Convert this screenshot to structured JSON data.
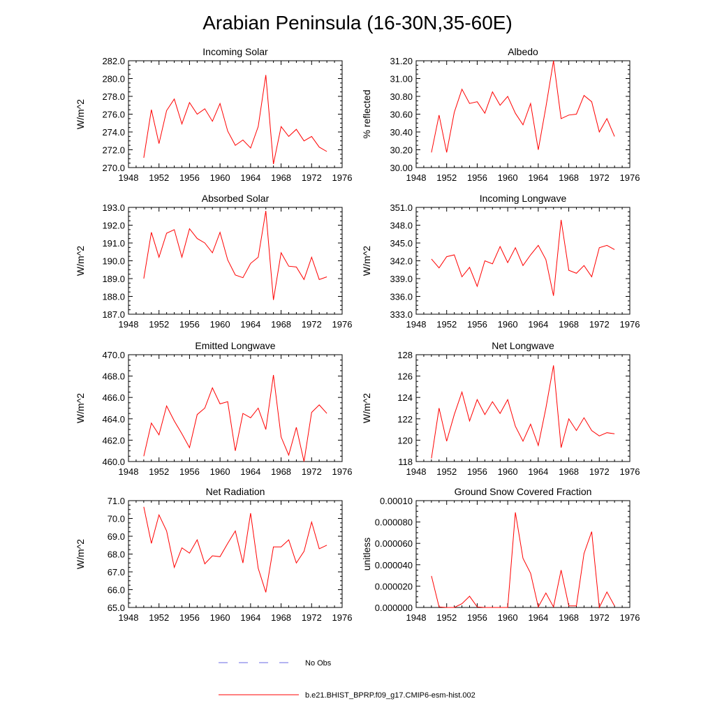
{
  "title": "Arabian Peninsula (16-30N,35-60E)",
  "line_color": "#ff0000",
  "obs_color": "#6a6ae6",
  "legend": [
    {
      "label": "No Obs",
      "style": "dashed"
    },
    {
      "label": "b.e21.BHIST_BPRP.f09_g17.CMIP6-esm-hist.002",
      "style": "solid"
    }
  ],
  "chart_data": [
    {
      "type": "line",
      "title": "Incoming Solar",
      "xlabel": "",
      "ylabel": "W/m^2",
      "xlim": [
        1948,
        1976
      ],
      "ylim": [
        270,
        282
      ],
      "xticks": [
        "1948",
        "1952",
        "1956",
        "1960",
        "1964",
        "1968",
        "1972",
        "1976"
      ],
      "yticks": [
        "270.0",
        "272.0",
        "274.0",
        "276.0",
        "278.0",
        "280.0",
        "282.0"
      ],
      "x": [
        1950,
        1951,
        1952,
        1953,
        1954,
        1955,
        1956,
        1957,
        1958,
        1959,
        1960,
        1961,
        1962,
        1963,
        1964,
        1965,
        1966,
        1967,
        1968,
        1969,
        1970,
        1971,
        1972,
        1973,
        1974
      ],
      "series": [
        {
          "values": [
            271.1,
            276.5,
            272.7,
            276.4,
            277.7,
            274.9,
            277.3,
            276.0,
            276.6,
            275.2,
            277.2,
            274.1,
            272.5,
            273.1,
            272.2,
            274.6,
            280.4,
            270.4,
            274.6,
            273.5,
            274.3,
            273.0,
            273.5,
            272.3,
            271.8
          ]
        }
      ]
    },
    {
      "type": "line",
      "title": "Albedo",
      "xlabel": "",
      "ylabel": "% reflected",
      "xlim": [
        1948,
        1976
      ],
      "ylim": [
        30.0,
        31.2
      ],
      "xticks": [
        "1948",
        "1952",
        "1956",
        "1960",
        "1964",
        "1968",
        "1972",
        "1976"
      ],
      "yticks": [
        "30.00",
        "30.20",
        "30.40",
        "30.60",
        "30.80",
        "31.00",
        "31.20"
      ],
      "x": [
        1950,
        1951,
        1952,
        1953,
        1954,
        1955,
        1956,
        1957,
        1958,
        1959,
        1960,
        1961,
        1962,
        1963,
        1964,
        1965,
        1966,
        1967,
        1968,
        1969,
        1970,
        1971,
        1972,
        1973,
        1974
      ],
      "series": [
        {
          "values": [
            30.17,
            30.59,
            30.17,
            30.62,
            30.88,
            30.72,
            30.74,
            30.61,
            30.85,
            30.7,
            30.8,
            30.61,
            30.48,
            30.72,
            30.2,
            30.68,
            31.2,
            30.55,
            30.59,
            30.6,
            30.81,
            30.74,
            30.4,
            30.55,
            30.35
          ]
        }
      ]
    },
    {
      "type": "line",
      "title": "Absorbed Solar",
      "xlabel": "",
      "ylabel": "W/m^2",
      "xlim": [
        1948,
        1976
      ],
      "ylim": [
        187,
        193
      ],
      "xticks": [
        "1948",
        "1952",
        "1956",
        "1960",
        "1964",
        "1968",
        "1972",
        "1976"
      ],
      "yticks": [
        "187.0",
        "188.0",
        "189.0",
        "190.0",
        "191.0",
        "192.0",
        "193.0"
      ],
      "x": [
        1950,
        1951,
        1952,
        1953,
        1954,
        1955,
        1956,
        1957,
        1958,
        1959,
        1960,
        1961,
        1962,
        1963,
        1964,
        1965,
        1966,
        1967,
        1968,
        1969,
        1970,
        1971,
        1972,
        1973,
        1974
      ],
      "series": [
        {
          "values": [
            189.0,
            191.6,
            190.2,
            191.55,
            191.75,
            190.2,
            191.8,
            191.25,
            191.0,
            190.45,
            191.6,
            190.05,
            189.2,
            189.05,
            189.85,
            190.2,
            192.8,
            187.8,
            190.45,
            189.7,
            189.65,
            188.95,
            190.2,
            188.95,
            189.1
          ]
        }
      ]
    },
    {
      "type": "line",
      "title": "Incoming Longwave",
      "xlabel": "",
      "ylabel": "W/m^2",
      "xlim": [
        1948,
        1976
      ],
      "ylim": [
        333,
        351
      ],
      "xticks": [
        "1948",
        "1952",
        "1956",
        "1960",
        "1964",
        "1968",
        "1972",
        "1976"
      ],
      "yticks": [
        "333.0",
        "336.0",
        "339.0",
        "342.0",
        "345.0",
        "348.0",
        "351.0"
      ],
      "x": [
        1950,
        1951,
        1952,
        1953,
        1954,
        1955,
        1956,
        1957,
        1958,
        1959,
        1960,
        1961,
        1962,
        1963,
        1964,
        1965,
        1966,
        1967,
        1968,
        1969,
        1970,
        1971,
        1972,
        1973,
        1974
      ],
      "series": [
        {
          "values": [
            342.3,
            340.8,
            342.7,
            343.0,
            339.3,
            340.9,
            337.7,
            342.0,
            341.5,
            344.4,
            341.7,
            344.2,
            341.2,
            343.0,
            344.6,
            342.2,
            336.1,
            348.9,
            340.4,
            339.9,
            341.2,
            339.3,
            344.2,
            344.6,
            343.9
          ]
        }
      ]
    },
    {
      "type": "line",
      "title": "Emitted Longwave",
      "xlabel": "",
      "ylabel": "W/m^2",
      "xlim": [
        1948,
        1976
      ],
      "ylim": [
        460,
        470
      ],
      "xticks": [
        "1948",
        "1952",
        "1956",
        "1960",
        "1964",
        "1968",
        "1972",
        "1976"
      ],
      "yticks": [
        "460.0",
        "462.0",
        "464.0",
        "466.0",
        "468.0",
        "470.0"
      ],
      "x": [
        1950,
        1951,
        1952,
        1953,
        1954,
        1955,
        1956,
        1957,
        1958,
        1959,
        1960,
        1961,
        1962,
        1963,
        1964,
        1965,
        1966,
        1967,
        1968,
        1969,
        1970,
        1971,
        1972,
        1973,
        1974
      ],
      "series": [
        {
          "values": [
            460.5,
            463.6,
            462.5,
            465.2,
            463.8,
            462.6,
            461.3,
            464.4,
            465.0,
            466.9,
            465.4,
            465.6,
            461.0,
            464.5,
            464.1,
            465.0,
            463.0,
            468.1,
            462.3,
            460.6,
            463.2,
            460.0,
            464.6,
            465.3,
            464.5
          ]
        }
      ]
    },
    {
      "type": "line",
      "title": "Net Longwave",
      "xlabel": "",
      "ylabel": "W/m^2",
      "xlim": [
        1948,
        1976
      ],
      "ylim": [
        118,
        128
      ],
      "xticks": [
        "1948",
        "1952",
        "1956",
        "1960",
        "1964",
        "1968",
        "1972",
        "1976"
      ],
      "yticks": [
        "118",
        "120",
        "122",
        "124",
        "126",
        "128"
      ],
      "x": [
        1950,
        1951,
        1952,
        1953,
        1954,
        1955,
        1956,
        1957,
        1958,
        1959,
        1960,
        1961,
        1962,
        1963,
        1964,
        1965,
        1966,
        1967,
        1968,
        1969,
        1970,
        1971,
        1972,
        1973,
        1974
      ],
      "series": [
        {
          "values": [
            118.3,
            123.0,
            119.9,
            122.4,
            124.5,
            121.8,
            123.8,
            122.4,
            123.6,
            122.5,
            123.8,
            121.3,
            119.9,
            121.5,
            119.5,
            123.0,
            127.0,
            119.3,
            122.0,
            120.9,
            122.1,
            120.9,
            120.4,
            120.7,
            120.6
          ]
        }
      ]
    },
    {
      "type": "line",
      "title": "Net Radiation",
      "xlabel": "",
      "ylabel": "W/m^2",
      "xlim": [
        1948,
        1976
      ],
      "ylim": [
        65,
        71
      ],
      "xticks": [
        "1948",
        "1952",
        "1956",
        "1960",
        "1964",
        "1968",
        "1972",
        "1976"
      ],
      "yticks": [
        "65.0",
        "66.0",
        "67.0",
        "68.0",
        "69.0",
        "70.0",
        "71.0"
      ],
      "x": [
        1950,
        1951,
        1952,
        1953,
        1954,
        1955,
        1956,
        1957,
        1958,
        1959,
        1960,
        1961,
        1962,
        1963,
        1964,
        1965,
        1966,
        1967,
        1968,
        1969,
        1970,
        1971,
        1972,
        1973,
        1974
      ],
      "series": [
        {
          "values": [
            70.65,
            68.6,
            70.2,
            69.3,
            67.25,
            68.35,
            68.05,
            68.8,
            67.45,
            67.9,
            67.85,
            68.6,
            69.3,
            67.5,
            70.3,
            67.2,
            65.85,
            68.4,
            68.4,
            68.8,
            67.5,
            68.15,
            69.8,
            68.3,
            68.5
          ]
        }
      ]
    },
    {
      "type": "line",
      "title": "Ground Snow Covered Fraction",
      "xlabel": "",
      "ylabel": "unitless",
      "xlim": [
        1948,
        1976
      ],
      "ylim": [
        0,
        0.0001
      ],
      "xticks": [
        "1948",
        "1952",
        "1956",
        "1960",
        "1964",
        "1968",
        "1972",
        "1976"
      ],
      "yticks": [
        "0.000000",
        "0.000020",
        "0.000040",
        "0.000060",
        "0.000080",
        "0.00010"
      ],
      "x": [
        1950,
        1951,
        1952,
        1953,
        1954,
        1955,
        1956,
        1957,
        1958,
        1959,
        1960,
        1961,
        1962,
        1963,
        1964,
        1965,
        1966,
        1967,
        1968,
        1969,
        1970,
        1971,
        1972,
        1973,
        1974
      ],
      "series": [
        {
          "values": [
            2.95e-05,
            5e-07,
            0.0,
            0.0,
            3.5e-06,
            1.05e-05,
            5e-07,
            0.0,
            0.0,
            0.0,
            0.0,
            8.9e-05,
            4.6e-05,
            3.2e-05,
            5e-07,
            1.35e-05,
            5e-07,
            3.5e-05,
            1.5e-06,
            1.5e-06,
            5.05e-05,
            7.1e-05,
            0.0,
            1.45e-05,
            1.5e-06
          ]
        }
      ]
    }
  ]
}
